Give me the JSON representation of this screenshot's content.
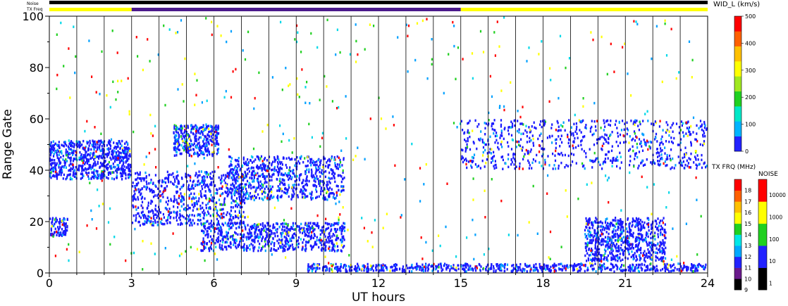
{
  "chart_data": [
    {
      "type": "heatmap",
      "xlabel": "UT hours",
      "ylabel": "Range Gate",
      "xlim": [
        0,
        24
      ],
      "ylim": [
        0,
        100
      ],
      "xticks": [
        0,
        3,
        6,
        9,
        12,
        15,
        18,
        21,
        24
      ],
      "yticks": [
        0,
        20,
        40,
        60,
        80,
        100
      ],
      "grid": "vertical lines every 1 h",
      "top_strips": [
        {
          "label": "Noise",
          "color": "#000000",
          "segments": [
            {
              "x": [
                0,
                24
              ],
              "color": "#000000"
            }
          ]
        },
        {
          "label": "TX Freq",
          "color": "#ffff00",
          "segments": [
            {
              "x": [
                0,
                3
              ],
              "color": "#ffff00"
            },
            {
              "x": [
                3,
                15
              ],
              "color": "#4b1a8c"
            },
            {
              "x": [
                15,
                24
              ],
              "color": "#ffff00"
            }
          ]
        }
      ],
      "value_label": "WID_L (km/s)",
      "value_range": [
        0,
        500
      ],
      "dominant_value": "near 0 (blue)",
      "echo_regions": [
        {
          "x": [
            0.0,
            3.0
          ],
          "y": [
            36,
            52
          ],
          "level": "low"
        },
        {
          "x": [
            0.0,
            0.7
          ],
          "y": [
            14,
            22
          ],
          "level": "low"
        },
        {
          "x": [
            3.0,
            7.2
          ],
          "y": [
            18,
            40
          ],
          "level": "low"
        },
        {
          "x": [
            4.5,
            6.2
          ],
          "y": [
            45,
            58
          ],
          "level": "low"
        },
        {
          "x": [
            6.5,
            10.8
          ],
          "y": [
            28,
            46
          ],
          "level": "low"
        },
        {
          "x": [
            5.5,
            10.8
          ],
          "y": [
            8,
            20
          ],
          "level": "low"
        },
        {
          "x": [
            9.4,
            24.0
          ],
          "y": [
            0,
            4
          ],
          "level": "low"
        },
        {
          "x": [
            15.0,
            24.0
          ],
          "y": [
            40,
            60
          ],
          "level": "low"
        },
        {
          "x": [
            19.5,
            22.5
          ],
          "y": [
            4,
            22
          ],
          "level": "low"
        }
      ]
    },
    {
      "type": "colorbar",
      "title": "WID_L (km/s)",
      "ticks": [
        0,
        100,
        200,
        300,
        400,
        500
      ],
      "colors": [
        "#2222ff",
        "#00b4ff",
        "#00e8c8",
        "#20d020",
        "#a0e820",
        "#ffff00",
        "#ffc000",
        "#ff6000",
        "#ff0000"
      ]
    },
    {
      "type": "colorbar",
      "title": "TX FRQ (MHz)",
      "ticks": [
        9,
        10,
        11,
        12,
        13,
        14,
        15,
        16,
        17,
        18
      ],
      "colors": [
        "#000000",
        "#6a1a8c",
        "#2222ff",
        "#00a8ff",
        "#00e8e8",
        "#20d020",
        "#ffff00",
        "#ffc000",
        "#ff6000",
        "#ff0000"
      ]
    },
    {
      "type": "colorbar",
      "title": "NOISE",
      "scale": "log",
      "ticks": [
        1,
        10,
        100,
        1000,
        10000
      ],
      "colors": [
        "#000000",
        "#2222ff",
        "#20d020",
        "#ffff00",
        "#ff0000"
      ]
    }
  ],
  "labels": {
    "noise_strip": "Noise",
    "txfreq_strip": "TX Freq",
    "wid_title": "WID_L (km/s)",
    "txfrq_title": "TX FRQ (MHz)",
    "noise_title": "NOISE"
  }
}
